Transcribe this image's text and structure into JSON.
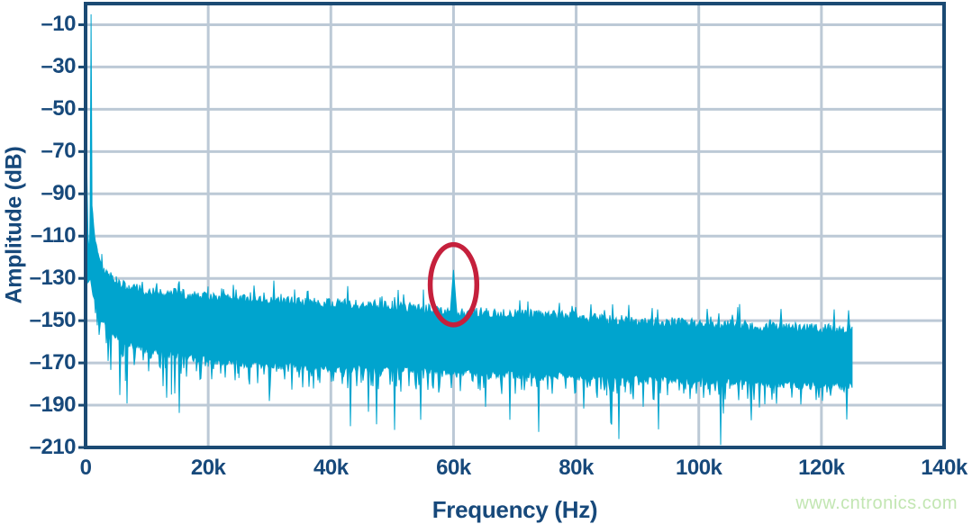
{
  "page": {
    "background": "#ffffff",
    "watermark": {
      "text": "www.cntronics.com",
      "color": "#c2e6b2"
    }
  },
  "chart_data": {
    "type": "area",
    "title": "",
    "xlabel": "Frequency (Hz)",
    "ylabel": "Amplitude (dB)",
    "xlim_hz": [
      0,
      140000
    ],
    "ylim_db": [
      -210,
      0
    ],
    "grid": true,
    "legend": "none",
    "colors": {
      "trace": "#00a4ce",
      "grid": "#bcc9d6",
      "axis": "#1b4a73",
      "text": "#17497b",
      "annotation": "#c5203c"
    },
    "x_ticks": {
      "labels": [
        "0",
        "20k",
        "40k",
        "60k",
        "80k",
        "100k",
        "120k",
        "140k"
      ],
      "values_hz": [
        0,
        20000,
        40000,
        60000,
        80000,
        100000,
        120000,
        140000
      ]
    },
    "y_ticks": {
      "labels": [
        "–10",
        "–30",
        "–50",
        "–70",
        "–90",
        "–110",
        "–130",
        "–150",
        "–170",
        "–190",
        "–210"
      ],
      "values_db": [
        -10,
        -30,
        -50,
        -70,
        -90,
        -110,
        -130,
        -150,
        -170,
        -190,
        -210
      ]
    },
    "series": [
      {
        "name": "fft-noise-spectrum",
        "ends_at_hz": 125000,
        "fundamental": {
          "freq_hz": 900,
          "peak_db": -5
        },
        "spur": {
          "freq_hz": 60000,
          "peak_db": -126,
          "base_width_hz": 1100
        },
        "envelope_top_db": [
          [
            0,
            -63
          ],
          [
            200,
            -80
          ],
          [
            400,
            -110
          ],
          [
            650,
            -118
          ],
          [
            750,
            -95
          ],
          [
            900,
            -5
          ],
          [
            1050,
            -95
          ],
          [
            1300,
            -105
          ],
          [
            1600,
            -112
          ],
          [
            2000,
            -118
          ],
          [
            2600,
            -123
          ],
          [
            3500,
            -128
          ],
          [
            5000,
            -131
          ],
          [
            7000,
            -134
          ],
          [
            10000,
            -136
          ],
          [
            14000,
            -137
          ],
          [
            20000,
            -139
          ],
          [
            26000,
            -140
          ],
          [
            34000,
            -141
          ],
          [
            42000,
            -142
          ],
          [
            50000,
            -143
          ],
          [
            58000,
            -145
          ],
          [
            60000,
            -146
          ],
          [
            65000,
            -146
          ],
          [
            72000,
            -147
          ],
          [
            80000,
            -148
          ],
          [
            88000,
            -150
          ],
          [
            96000,
            -151
          ],
          [
            105000,
            -152
          ],
          [
            113000,
            -153
          ],
          [
            120000,
            -154
          ],
          [
            125000,
            -154
          ]
        ],
        "envelope_bottom_db": [
          [
            0,
            -128
          ],
          [
            400,
            -132
          ],
          [
            800,
            -130
          ],
          [
            1200,
            -138
          ],
          [
            2000,
            -144
          ],
          [
            3000,
            -149
          ],
          [
            4500,
            -154
          ],
          [
            6500,
            -158
          ],
          [
            9000,
            -161
          ],
          [
            13000,
            -164
          ],
          [
            18000,
            -166
          ],
          [
            25000,
            -168
          ],
          [
            35000,
            -170
          ],
          [
            45000,
            -171
          ],
          [
            55000,
            -172
          ],
          [
            65000,
            -173
          ],
          [
            75000,
            -174
          ],
          [
            85000,
            -175
          ],
          [
            95000,
            -176
          ],
          [
            105000,
            -177
          ],
          [
            115000,
            -178
          ],
          [
            125000,
            -179
          ]
        ],
        "notable_deep_spikes_db": [
          [
            14000,
            -185
          ],
          [
            30000,
            -188
          ],
          [
            47500,
            -199
          ],
          [
            87000,
            -206
          ],
          [
            104000,
            -194
          ]
        ]
      }
    ],
    "annotations": [
      {
        "type": "ellipse",
        "center_hz": 60000,
        "center_db": -133,
        "rx_hz": 3800,
        "ry_db": 19,
        "color": "#c5203c",
        "stroke_px": 5.5
      }
    ]
  }
}
